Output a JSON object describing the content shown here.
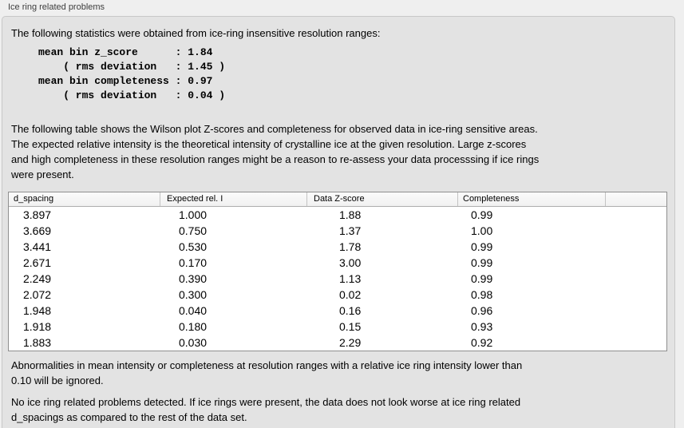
{
  "panel": {
    "title": "Ice ring related problems"
  },
  "intro": "The following statistics were obtained from ice-ring insensitive resolution ranges:",
  "stats_block": "mean bin z_score      : 1.84\n    ( rms deviation   : 1.45 )\nmean bin completeness : 0.97\n    ( rms deviation   : 0.04 )",
  "description": "The following table shows the Wilson plot Z-scores and completeness for observed data in ice-ring sensitive areas.\nThe expected relative intensity is the theoretical intensity of crystalline ice at the given resolution. Large z-scores\nand high completeness in these resolution ranges might be a reason to re-assess your data processsing if ice rings\nwere present.",
  "table": {
    "columns": [
      "d_spacing",
      "Expected rel. I",
      "Data Z-score",
      "Completeness",
      ""
    ],
    "rows": [
      [
        "3.897",
        "1.000",
        "1.88",
        "0.99"
      ],
      [
        "3.669",
        "0.750",
        "1.37",
        "1.00"
      ],
      [
        "3.441",
        "0.530",
        "1.78",
        "0.99"
      ],
      [
        "2.671",
        "0.170",
        "3.00",
        "0.99"
      ],
      [
        "2.249",
        "0.390",
        "1.13",
        "0.99"
      ],
      [
        "2.072",
        "0.300",
        "0.02",
        "0.98"
      ],
      [
        "1.948",
        "0.040",
        "0.16",
        "0.96"
      ],
      [
        "1.918",
        "0.180",
        "0.15",
        "0.93"
      ],
      [
        "1.883",
        "0.030",
        "2.29",
        "0.92"
      ]
    ]
  },
  "note_ignore": "Abnormalities in mean intensity or completeness at resolution ranges with a relative ice ring intensity lower than\n0.10 will be ignored.",
  "conclusion": "No ice ring related problems detected. If ice rings were present, the data does not look worse at ice ring related\nd_spacings as compared to the rest of the data set.",
  "colors": {
    "panel_background": "#e3e3e3",
    "outer_background": "#efefef",
    "table_background": "#ffffff",
    "table_border": "#8f8f8f"
  }
}
